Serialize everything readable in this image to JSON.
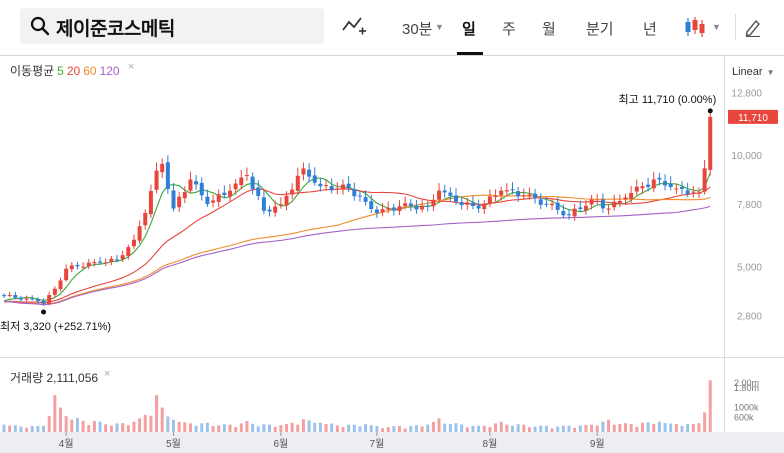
{
  "toolbar": {
    "stock_name": "제이준코스메틱",
    "interval_label": "30분",
    "periods": [
      "일",
      "주",
      "월",
      "분기",
      "년"
    ],
    "active_period": "일"
  },
  "legend": {
    "ma_label": "이동평균",
    "ma_periods": [
      {
        "label": "5",
        "color": "#3aa83a"
      },
      {
        "label": "20",
        "color": "#e8453c"
      },
      {
        "label": "60",
        "color": "#f08c2a"
      },
      {
        "label": "120",
        "color": "#a562c8"
      }
    ],
    "volume_label": "거래량 2,111,056",
    "close_glyph": "×"
  },
  "scale_mode": "Linear",
  "colors": {
    "up": "#e8453c",
    "down": "#2f7fd6",
    "ma5": "#3aa83a",
    "ma20": "#e8453c",
    "ma60": "#f08c2a",
    "ma120": "#a562c8",
    "price_tag": "#e8453c",
    "vol_up": "#f4a0a0",
    "vol_down": "#9cc3ec"
  },
  "chart_data": {
    "type": "candlestick",
    "price_axis": {
      "ticks": [
        {
          "value": 12800,
          "label": "12,800"
        },
        {
          "value": 10000,
          "label": "10,000"
        },
        {
          "value": 7800,
          "label": "7,800"
        },
        {
          "value": 5000,
          "label": "5,000"
        },
        {
          "value": 2800,
          "label": "2,800"
        }
      ],
      "current": {
        "value": 11710,
        "label": "11,710"
      }
    },
    "x_axis": {
      "ticks": [
        {
          "index": 11,
          "label": "4월"
        },
        {
          "index": 30,
          "label": "5월"
        },
        {
          "index": 49,
          "label": "6월"
        },
        {
          "index": 66,
          "label": "7월"
        },
        {
          "index": 86,
          "label": "8월"
        },
        {
          "index": 105,
          "label": "9월"
        }
      ]
    },
    "volume_axis": {
      "ticks": [
        {
          "value": 2000000,
          "label": "2.00m"
        },
        {
          "value": 1800000,
          "label": "1.80m"
        },
        {
          "value": 1000000,
          "label": "1000k"
        },
        {
          "value": 600000,
          "label": "600k"
        }
      ]
    },
    "annotations": {
      "high": {
        "text": "최고  11,710 (0.00%)",
        "index": 125,
        "value": 11710
      },
      "low": {
        "text": "최저  3,320 (+252.71%)",
        "index": 7,
        "value": 3320
      }
    },
    "anchors": [
      [
        0,
        3700,
        300000
      ],
      [
        6,
        3450,
        250000
      ],
      [
        7,
        3330,
        250000
      ],
      [
        9,
        4000,
        1500000
      ],
      [
        11,
        4900,
        650000
      ],
      [
        16,
        5200,
        450000
      ],
      [
        20,
        5300,
        350000
      ],
      [
        23,
        6200,
        420000
      ],
      [
        25,
        7400,
        700000
      ],
      [
        27,
        9300,
        1500000
      ],
      [
        28,
        9600,
        1000000
      ],
      [
        30,
        7600,
        500000
      ],
      [
        33,
        8900,
        350000
      ],
      [
        36,
        7800,
        380000
      ],
      [
        40,
        8400,
        300000
      ],
      [
        43,
        9100,
        450000
      ],
      [
        46,
        7500,
        320000
      ],
      [
        49,
        7800,
        280000
      ],
      [
        53,
        9400,
        520000
      ],
      [
        56,
        8600,
        380000
      ],
      [
        61,
        8500,
        300000
      ],
      [
        64,
        7900,
        320000
      ],
      [
        66,
        7400,
        250000
      ],
      [
        70,
        7700,
        240000
      ],
      [
        75,
        7700,
        300000
      ],
      [
        77,
        8400,
        560000
      ],
      [
        80,
        7900,
        360000
      ],
      [
        84,
        7600,
        260000
      ],
      [
        88,
        8400,
        420000
      ],
      [
        92,
        8200,
        300000
      ],
      [
        96,
        7800,
        250000
      ],
      [
        100,
        7300,
        260000
      ],
      [
        104,
        8000,
        300000
      ],
      [
        107,
        7600,
        500000
      ],
      [
        110,
        8100,
        360000
      ],
      [
        113,
        8600,
        380000
      ],
      [
        116,
        8900,
        420000
      ],
      [
        119,
        8500,
        320000
      ],
      [
        123,
        8300,
        360000
      ],
      [
        124,
        9400,
        800000
      ],
      [
        125,
        11710,
        2111056
      ]
    ]
  }
}
